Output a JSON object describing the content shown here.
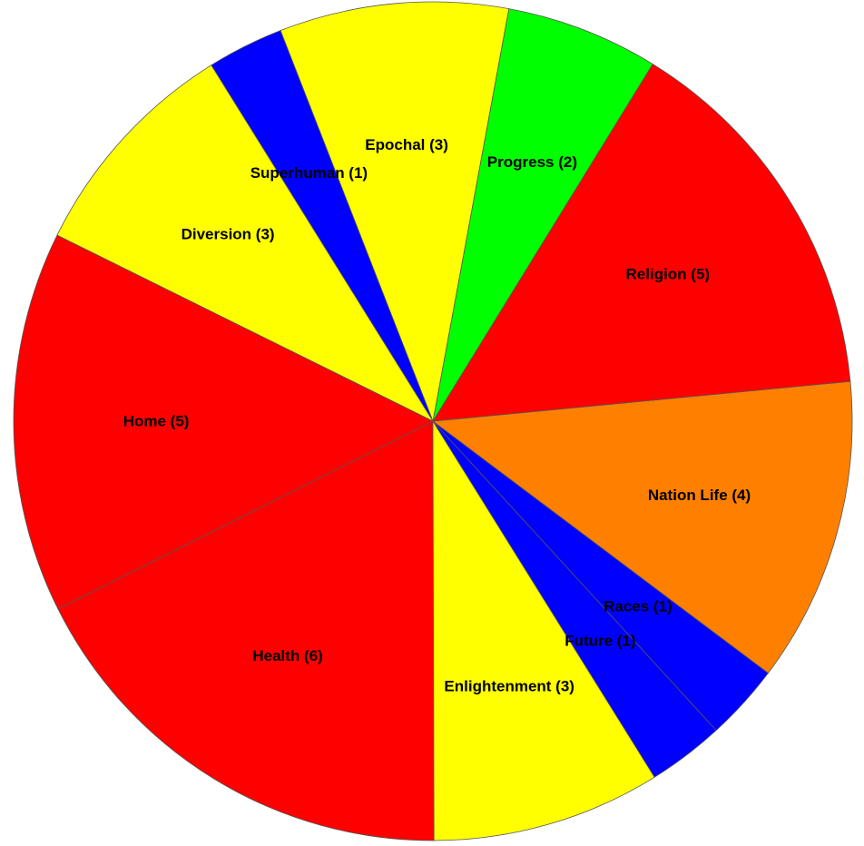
{
  "chart_data": {
    "type": "pie",
    "start_angle_deg": -47.5,
    "direction": "counterclockwise",
    "slices": [
      {
        "label": "Races (1)",
        "name": "Races",
        "value": 1,
        "color": "#0000ff"
      },
      {
        "label": "Nation Life (4)",
        "name": "Nation Life",
        "value": 4,
        "color": "#ff8000"
      },
      {
        "label": "Religion (5)",
        "name": "Religion",
        "value": 5,
        "color": "#ff0000"
      },
      {
        "label": "Progress (2)",
        "name": "Progress",
        "value": 2,
        "color": "#00ff00"
      },
      {
        "label": "Epochal (3)",
        "name": "Epochal",
        "value": 3,
        "color": "#ffff00"
      },
      {
        "label": "Superhuman (1)",
        "name": "Superhuman",
        "value": 1,
        "color": "#0000ff"
      },
      {
        "label": "Diversion (3)",
        "name": "Diversion",
        "value": 3,
        "color": "#ffff00"
      },
      {
        "label": "Home (5)",
        "name": "Home",
        "value": 5,
        "color": "#ff0000"
      },
      {
        "label": "Health (6)",
        "name": "Health",
        "value": 6,
        "color": "#ff0000"
      },
      {
        "label": "Enlightenment (3)",
        "name": "Enlightenment",
        "value": 3,
        "color": "#ffff00"
      },
      {
        "label": "Future (1)",
        "name": "Future",
        "value": 1,
        "color": "#0000ff"
      }
    ]
  }
}
